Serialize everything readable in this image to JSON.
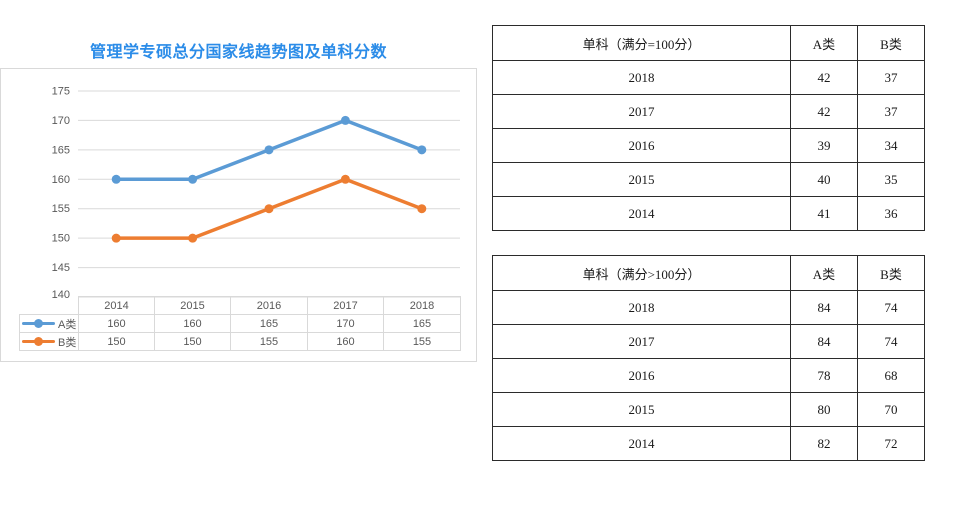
{
  "title": "管理学专硕总分国家线趋势图及单科分数",
  "colors": {
    "title": "#2b8ce8",
    "gridline": "#d9d9d9",
    "axis_text": "#595959",
    "table_border": "#2b2b2b"
  },
  "chart_data": {
    "type": "line",
    "title": "管理学专硕总分国家线趋势图及单科分数",
    "categories": [
      "2014",
      "2015",
      "2016",
      "2017",
      "2018"
    ],
    "series": [
      {
        "name": "A类",
        "values": [
          160,
          160,
          165,
          170,
          165
        ],
        "color": "#5B9BD5"
      },
      {
        "name": "B类",
        "values": [
          150,
          150,
          155,
          160,
          155
        ],
        "color": "#ED7D31"
      }
    ],
    "xlabel": "",
    "ylabel": "",
    "ylim": [
      140,
      175
    ],
    "y_ticks": [
      175,
      170,
      165,
      160,
      155,
      150,
      145,
      140
    ],
    "grid": true,
    "legend_position": "data-table-left",
    "has_data_table": true
  },
  "tables": [
    {
      "title": "单科（满分=100分）",
      "col_a": "A类",
      "col_b": "B类",
      "rows": [
        {
          "year": "2018",
          "a": "42",
          "b": "37"
        },
        {
          "year": "2017",
          "a": "42",
          "b": "37"
        },
        {
          "year": "2016",
          "a": "39",
          "b": "34"
        },
        {
          "year": "2015",
          "a": "40",
          "b": "35"
        },
        {
          "year": "2014",
          "a": "41",
          "b": "36"
        }
      ]
    },
    {
      "title": "单科（满分>100分）",
      "col_a": "A类",
      "col_b": "B类",
      "rows": [
        {
          "year": "2018",
          "a": "84",
          "b": "74"
        },
        {
          "year": "2017",
          "a": "84",
          "b": "74"
        },
        {
          "year": "2016",
          "a": "78",
          "b": "68"
        },
        {
          "year": "2015",
          "a": "80",
          "b": "70"
        },
        {
          "year": "2014",
          "a": "82",
          "b": "72"
        }
      ]
    }
  ]
}
